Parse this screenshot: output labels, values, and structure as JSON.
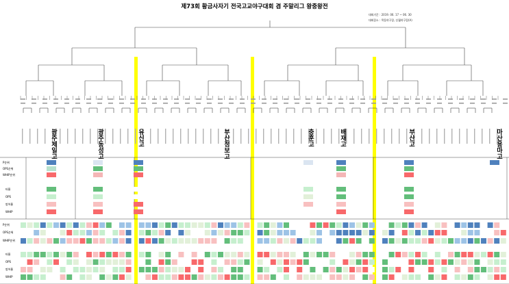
{
  "title": "제73회 황금사자기 전국고교야구대회 겸 주말리그 왕중왕전",
  "period": "대회기간 : 2019. 06. 17 ~ 06. 30",
  "venue": "대회장소 : 목동야구장, 신월야구장(A)",
  "teams": [
    {
      "name": "광주제일고"
    },
    {
      "name": "광주동성고"
    },
    {
      "name": "유신고"
    },
    {
      "name": "부산정보고"
    },
    {
      "name": "충훈고"
    },
    {
      "name": "배재고"
    },
    {
      "name": "부산고"
    },
    {
      "name": "마산용마고"
    }
  ],
  "rank_labels": [
    "P순위",
    "OPS순위",
    "WHIP순위"
  ],
  "stat_labels": [
    "타율",
    "OPS",
    "방어율",
    "WHIP"
  ],
  "colors": {
    "highlight": "#ffff00",
    "rank_top": "#4f81bd",
    "good": "#63be7b",
    "bad": "#f8696b",
    "neutral": "#fcfcff",
    "line": "#444444"
  }
}
